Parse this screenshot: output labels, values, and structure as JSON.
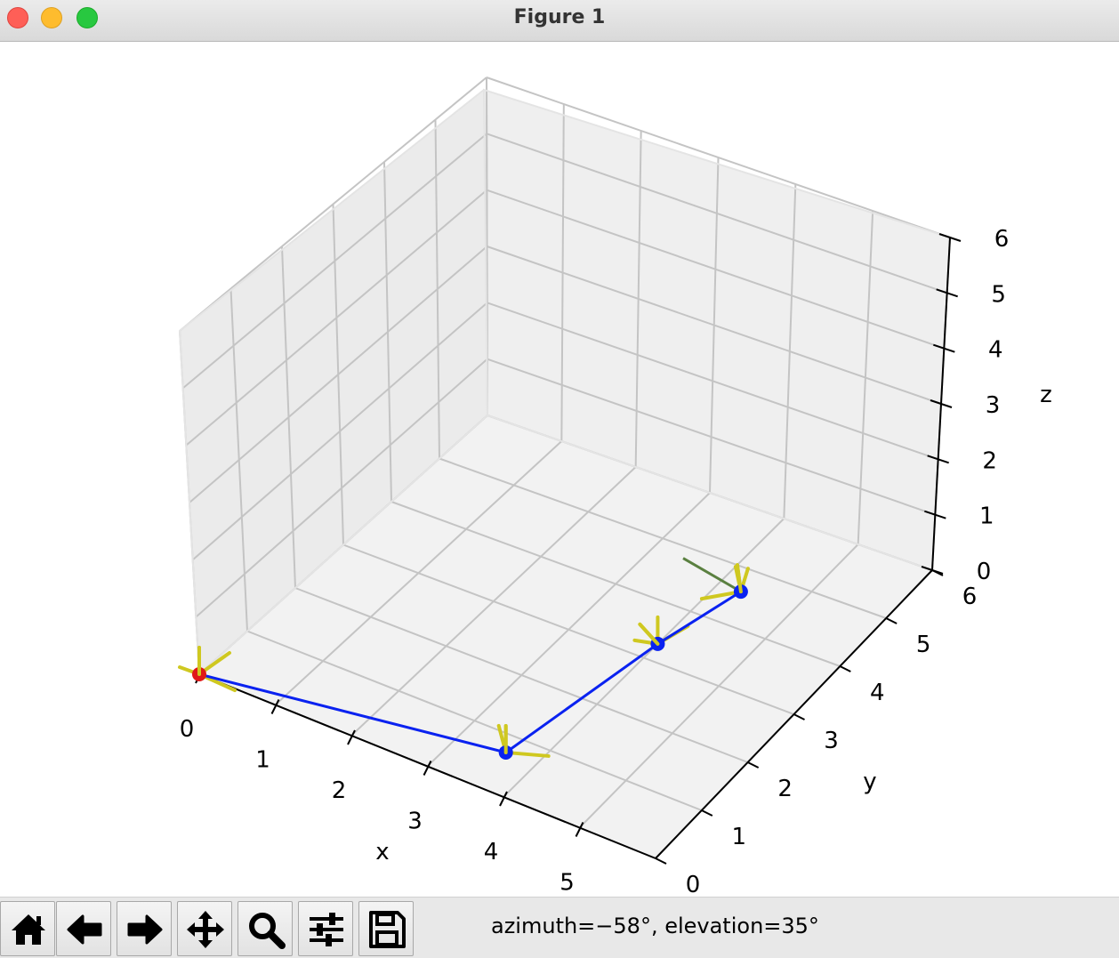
{
  "window": {
    "title": "Figure 1"
  },
  "toolbar": {
    "buttons": [
      {
        "icon": "home-icon"
      },
      {
        "icon": "back-arrow-icon"
      },
      {
        "icon": "forward-arrow-icon"
      },
      {
        "icon": "pan-move-icon"
      },
      {
        "icon": "zoom-magnifier-icon"
      },
      {
        "icon": "configure-subplots-icon"
      },
      {
        "icon": "save-disk-icon"
      }
    ],
    "status_text": "azimuth=−58°, elevation=35°"
  },
  "chart_data": {
    "type": "3d-line",
    "view": {
      "azimuth": -58,
      "elevation": 35
    },
    "xlabel": "x",
    "ylabel": "y",
    "zlabel": "z",
    "xlim": [
      0,
      6
    ],
    "ylim": [
      0,
      6
    ],
    "zlim": [
      0,
      6
    ],
    "x_ticks": [
      "0",
      "1",
      "2",
      "3",
      "4",
      "5"
    ],
    "y_ticks": [
      "0",
      "1",
      "2",
      "3",
      "4",
      "5",
      "6"
    ],
    "z_ticks": [
      "0",
      "1",
      "2",
      "3",
      "4",
      "5",
      "6"
    ],
    "grid": true,
    "colors": {
      "chain": "#0a22f0",
      "base_marker": "#e01818",
      "joint_marker": "#0a22f0",
      "frame_axes": "#cfc820",
      "end_segment": "#5a8040"
    },
    "series": [
      {
        "points": [
          [
            0,
            0,
            0
          ],
          [
            3.6,
            0.7,
            0
          ],
          [
            4.0,
            3.3,
            0
          ],
          [
            4.3,
            4.6,
            0
          ]
        ],
        "marker": "circle"
      }
    ],
    "end_segment": [
      [
        4.3,
        4.6,
        0
      ],
      [
        3.4,
        4.8,
        0
      ]
    ]
  }
}
